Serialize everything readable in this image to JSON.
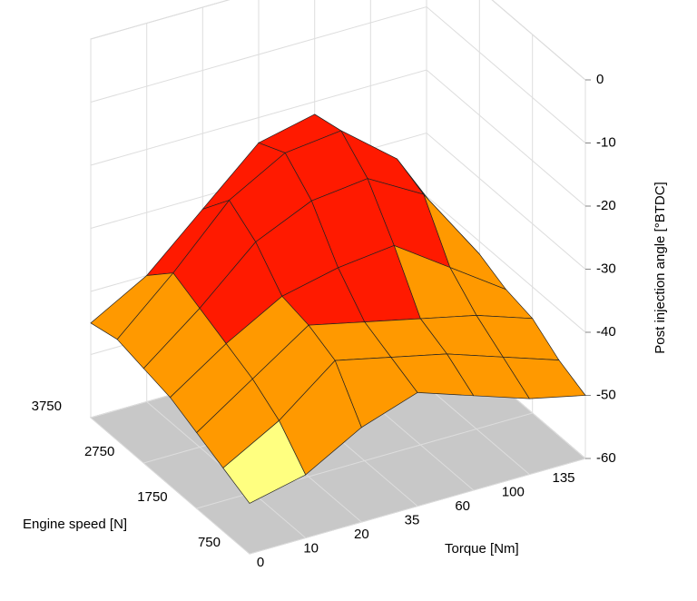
{
  "chart_data": {
    "type": "surface",
    "x_label": "Torque [Nm]",
    "y_label": "Engine speed [N]",
    "z_label": "Post injection angle [°BTDC]",
    "categories": [
      "0",
      "10",
      "20",
      "35",
      "60",
      "100",
      "135"
    ],
    "y": [
      750,
      1250,
      1750,
      2250,
      2750,
      3250,
      3750
    ],
    "ylim": [
      750,
      3750
    ],
    "yticks": [
      750,
      1750,
      2750,
      3750
    ],
    "zlim": [
      -60,
      0
    ],
    "zticks": [
      -60,
      -50,
      -40,
      -30,
      -20,
      -10,
      0
    ],
    "z": [
      [
        -52,
        -50,
        -45,
        -42,
        -45,
        -48,
        -50
      ],
      [
        -50,
        -45,
        -38,
        -40,
        -42,
        -45,
        -48
      ],
      [
        -48,
        -42,
        -36,
        -38,
        -40,
        -42,
        -45
      ],
      [
        -46,
        -40,
        -35,
        -33,
        -32,
        -38,
        -44
      ],
      [
        -45,
        -38,
        -30,
        -26,
        -25,
        -30,
        -42
      ],
      [
        -44,
        -36,
        -27,
        -22,
        -21,
        -28,
        -42
      ],
      [
        -45,
        -40,
        -32,
        -24,
        -22,
        -30,
        -42
      ]
    ],
    "color_bands": [
      {
        "min": -60,
        "max": -48,
        "color": "#ffff80"
      },
      {
        "min": -48,
        "max": -37,
        "color": "#ff9900"
      },
      {
        "min": -37,
        "max": 0,
        "color": "#ff1a00"
      }
    ],
    "floor_color": "#c8c8c8",
    "grid": true
  }
}
